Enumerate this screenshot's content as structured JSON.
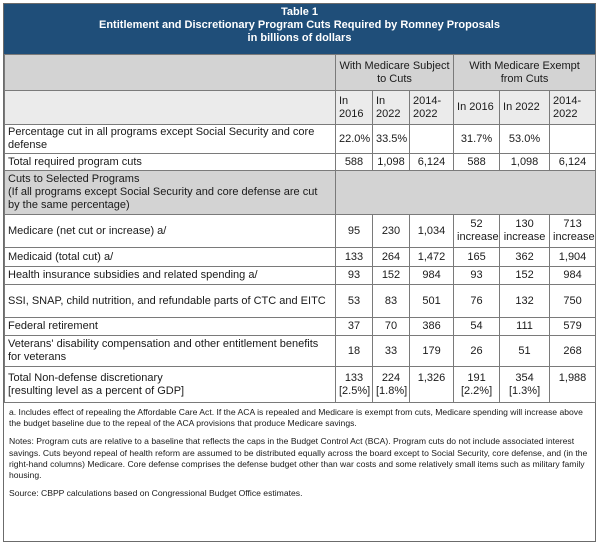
{
  "header": {
    "table_no": "Table 1",
    "title": "Entitlement and Discretionary Program Cuts Required by Romney Proposals",
    "units": "in billions of dollars"
  },
  "groups": [
    "With Medicare Subject to Cuts",
    "With Medicare Exempt from Cuts"
  ],
  "cols": [
    "In 2016",
    "In 2022",
    "2014-2022",
    "In 2016",
    "In 2022",
    "2014-2022"
  ],
  "rows": {
    "pct": {
      "label": "Percentage cut in all programs except Social Security and core defense",
      "v": [
        "22.0%",
        "33.5%",
        "",
        "31.7%",
        "53.0%",
        ""
      ]
    },
    "total": {
      "label": "Total required program cuts",
      "v": [
        "588",
        "1,098",
        "6,124",
        "588",
        "1,098",
        "6,124"
      ]
    },
    "section": {
      "title": "Cuts to Selected Programs",
      "sub": "(If all programs except Social Security and core defense are cut by the same percentage)"
    },
    "medicare": {
      "label": "Medicare (net cut or increase) a/",
      "v": [
        "95",
        "230",
        "1,034",
        "52",
        "130",
        "713"
      ],
      "inc": "increase"
    },
    "medicaid": {
      "label": "Medicaid (total cut) a/",
      "v": [
        "133",
        "264",
        "1,472",
        "165",
        "362",
        "1,904"
      ]
    },
    "health": {
      "label": "Health insurance subsidies and related spending a/",
      "v": [
        "93",
        "152",
        "984",
        "93",
        "152",
        "984"
      ]
    },
    "ssi": {
      "label": "SSI, SNAP, child nutrition, and refundable parts of CTC and EITC",
      "v": [
        "53",
        "83",
        "501",
        "76",
        "132",
        "750"
      ]
    },
    "federal": {
      "label": "Federal retirement",
      "v": [
        "37",
        "70",
        "386",
        "54",
        "111",
        "579"
      ]
    },
    "veterans": {
      "label": "Veterans' disability compensation and other entitlement benefits for veterans",
      "v": [
        "18",
        "33",
        "179",
        "26",
        "51",
        "268"
      ]
    },
    "nondefense": {
      "label": "Total Non-defense discretionary",
      "label2": "[resulting level as a percent of GDP]",
      "v": [
        "133",
        "224",
        "1,326",
        "191",
        "354",
        "1,988"
      ],
      "gdp": [
        "[2.5%]",
        "[1.8%]",
        "[2.2%]",
        "[1.3%]"
      ]
    }
  },
  "notes": {
    "a": "a. Includes effect of repealing the Affordable Care Act. If the ACA is repealed and Medicare is exempt from cuts, Medicare spending will increase above the budget baseline due to the repeal of the ACA provisions that produce Medicare savings.",
    "notes": "Notes: Program cuts are relative to a baseline that reflects the caps in the Budget Control Act (BCA). Program cuts do not include associated interest savings. Cuts beyond repeal of health reform are assumed to be distributed equally across the board except to Social Security, core defense, and (in the right-hand columns) Medicare. Core defense comprises the defense budget other than war costs and some relatively small items such as military family housing.",
    "source": "Source: CBPP calculations based on Congressional Budget Office estimates."
  }
}
